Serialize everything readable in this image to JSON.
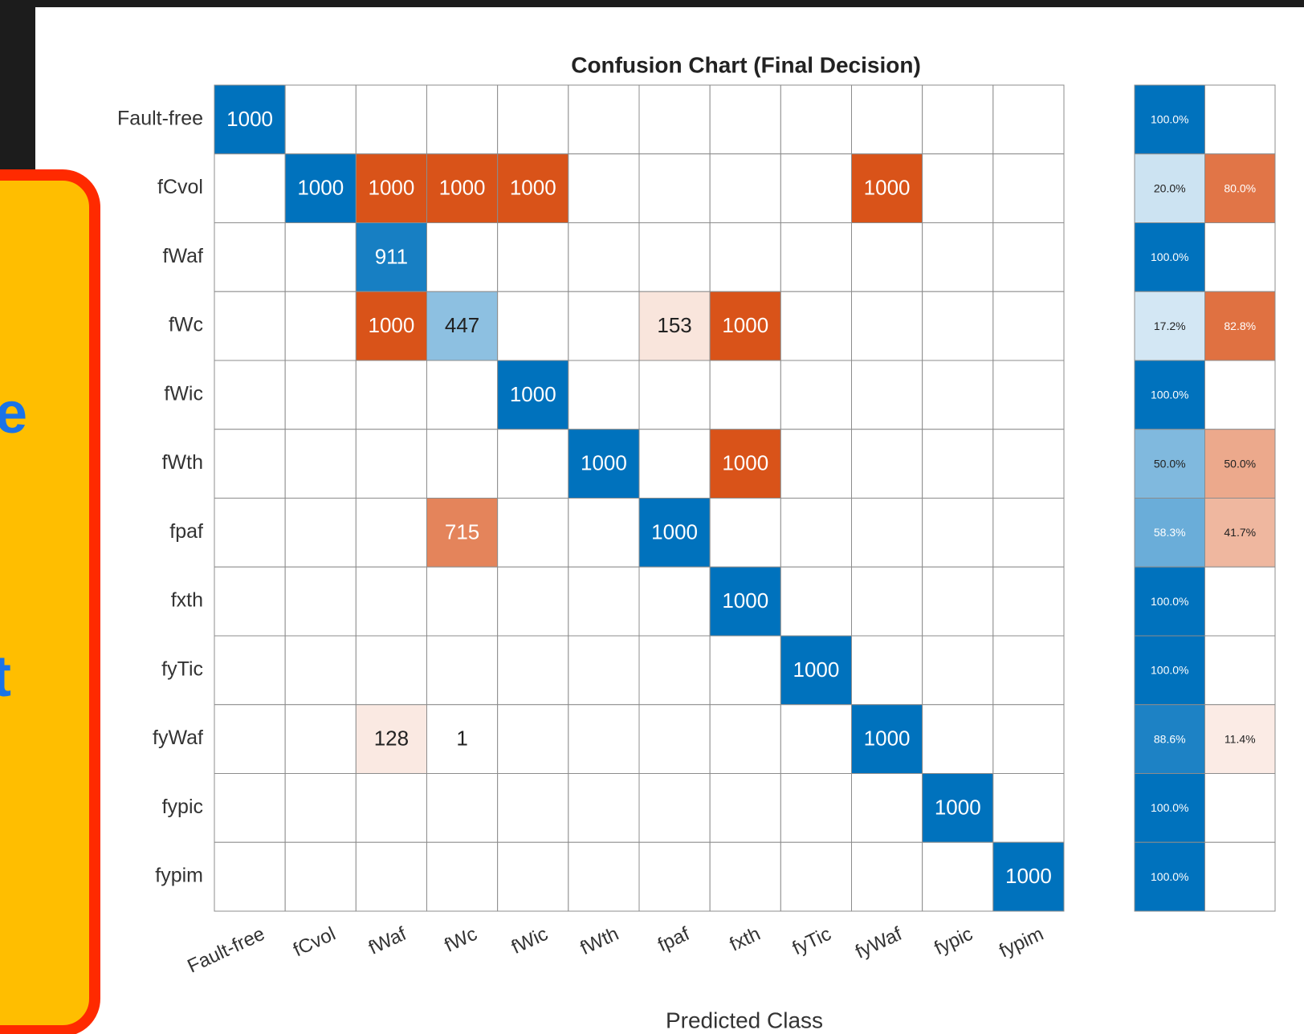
{
  "annotation_fragments": [
    "e",
    "t"
  ],
  "chart_data": {
    "type": "confusion",
    "title": "Confusion Chart (Final Decision)",
    "x_label": "Predicted Class",
    "classes": [
      "Fault-free",
      "fCvol",
      "fWaf",
      "fWc",
      "fWic",
      "fWth",
      "fpaf",
      "fxth",
      "fyTic",
      "fyWaf",
      "fypic",
      "fypim"
    ],
    "colors": {
      "correct": "#0072bd",
      "incorrect": "#d95319"
    },
    "max_count": 1000,
    "matrix": [
      [
        1000,
        null,
        null,
        null,
        null,
        null,
        null,
        null,
        null,
        null,
        null,
        null
      ],
      [
        null,
        1000,
        1000,
        1000,
        1000,
        null,
        null,
        null,
        null,
        1000,
        null,
        null
      ],
      [
        null,
        null,
        911,
        null,
        null,
        null,
        null,
        null,
        null,
        null,
        null,
        null
      ],
      [
        null,
        null,
        1000,
        447,
        null,
        null,
        153,
        1000,
        null,
        null,
        null,
        null
      ],
      [
        null,
        null,
        null,
        null,
        1000,
        null,
        null,
        null,
        null,
        null,
        null,
        null
      ],
      [
        null,
        null,
        null,
        null,
        null,
        1000,
        null,
        1000,
        null,
        null,
        null,
        null
      ],
      [
        null,
        null,
        null,
        715,
        null,
        null,
        1000,
        null,
        null,
        null,
        null,
        null
      ],
      [
        null,
        null,
        null,
        null,
        null,
        null,
        null,
        1000,
        null,
        null,
        null,
        null
      ],
      [
        null,
        null,
        null,
        null,
        null,
        null,
        null,
        null,
        1000,
        null,
        null,
        null
      ],
      [
        null,
        null,
        128,
        1,
        null,
        null,
        null,
        null,
        null,
        1000,
        null,
        null
      ],
      [
        null,
        null,
        null,
        null,
        null,
        null,
        null,
        null,
        null,
        null,
        1000,
        null
      ],
      [
        null,
        null,
        null,
        null,
        null,
        null,
        null,
        null,
        null,
        null,
        null,
        1000
      ]
    ],
    "row_summary": {
      "correct": [
        100.0,
        20.0,
        100.0,
        17.2,
        100.0,
        50.0,
        58.3,
        100.0,
        100.0,
        88.6,
        100.0,
        100.0
      ],
      "correct_labels": [
        "100.0%",
        "20.0%",
        "100.0%",
        "17.2%",
        "100.0%",
        "50.0%",
        "58.3%",
        "100.0%",
        "100.0%",
        "88.6%",
        "100.0%",
        "100.0%"
      ],
      "incorrect": [
        null,
        80.0,
        null,
        82.8,
        null,
        50.0,
        41.7,
        null,
        null,
        11.4,
        null,
        null
      ],
      "incorrect_labels": [
        null,
        "80.0%",
        null,
        "82.8%",
        null,
        "50.0%",
        "41.7%",
        null,
        null,
        "11.4%",
        null,
        null
      ]
    }
  }
}
